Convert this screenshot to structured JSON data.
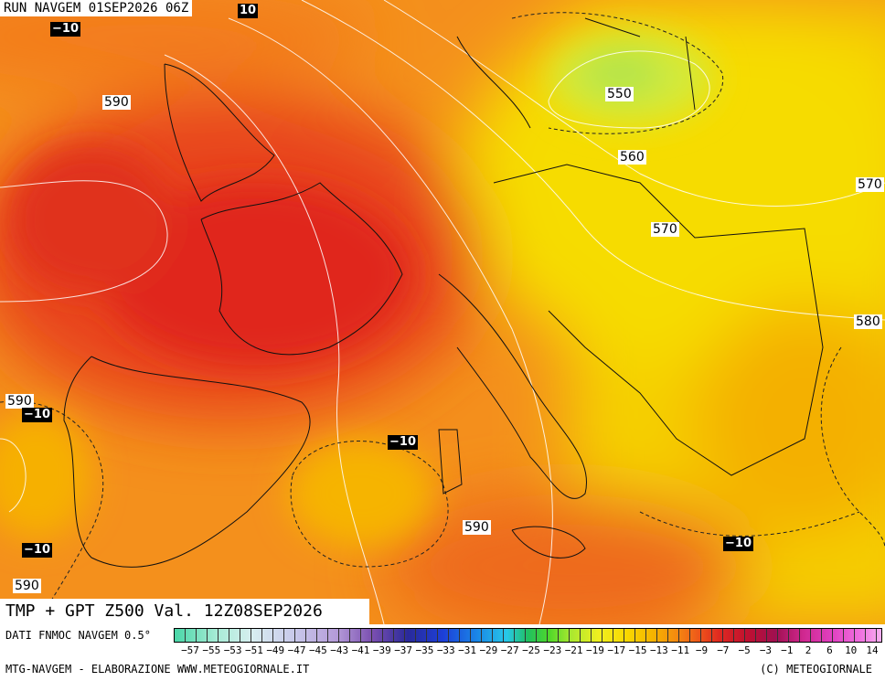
{
  "header": {
    "title": "RUN NAVGEM 01SEP2026 06Z"
  },
  "map": {
    "contour_labels": [
      "590",
      "550",
      "560",
      "570",
      "570",
      "580",
      "590",
      "590",
      "590"
    ],
    "temperature_labels": [
      "−10",
      "10",
      "−10",
      "−10",
      "−10",
      "−10"
    ]
  },
  "footer": {
    "caption": "TMP + GPT Z500 Val. 12Z08SEP2026",
    "source": "DATI FNMOC NAVGEM 0.5°",
    "scale_labels": [
      "−57",
      "−55",
      "−53",
      "−51",
      "−49",
      "−47",
      "−45",
      "−43",
      "−41",
      "−39",
      "−37",
      "−35",
      "−33",
      "−31",
      "−29",
      "−27",
      "−25",
      "−23",
      "−21",
      "−19",
      "−17",
      "−15",
      "−13",
      "−11",
      "−9",
      "−7",
      "−5",
      "−3",
      "−1",
      "2",
      "6",
      "10",
      "14"
    ],
    "credit_left": "MTG-NAVGEM - ELABORAZIONE WWW.METEOGIORNALE.IT",
    "credit_right": "(C) METEOGIORNALE"
  }
}
